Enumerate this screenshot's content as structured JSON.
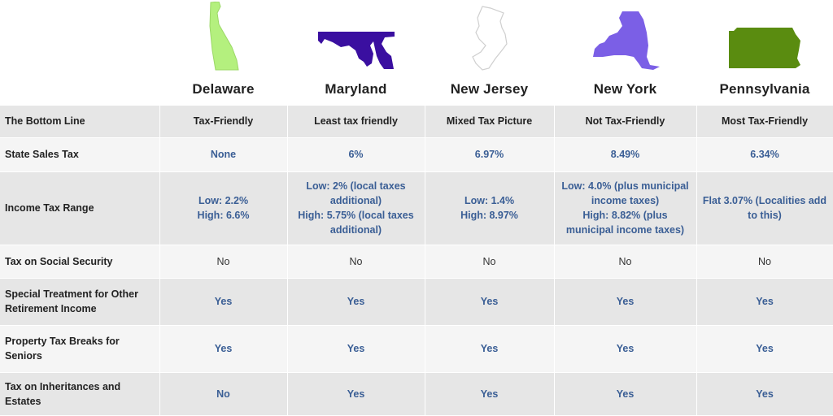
{
  "states": [
    {
      "name": "Delaware",
      "icon": "delaware-map-icon",
      "color": "#b4f07e"
    },
    {
      "name": "Maryland",
      "icon": "maryland-map-icon",
      "color": "#3a0fa0"
    },
    {
      "name": "New Jersey",
      "icon": "new-jersey-map-icon",
      "color": "#ffffff"
    },
    {
      "name": "New York",
      "icon": "new-york-map-icon",
      "color": "#7b5fe6"
    },
    {
      "name": "Pennsylvania",
      "icon": "pennsylvania-map-icon",
      "color": "#5a8c10"
    }
  ],
  "rows": [
    {
      "label": "The Bottom Line",
      "values": [
        "Tax-Friendly",
        "Least tax friendly",
        "Mixed Tax Picture",
        "Not Tax-Friendly",
        "Most Tax-Friendly"
      ]
    },
    {
      "label": "State Sales Tax",
      "values": [
        "None",
        "6%",
        "6.97%",
        "8.49%",
        "6.34%"
      ]
    },
    {
      "label": "Income Tax Range",
      "values": [
        [
          "Low: 2.2%",
          "High: 6.6%"
        ],
        [
          "Low: 2% (local taxes additional)",
          "High: 5.75% (local taxes additional)"
        ],
        [
          "Low: 1.4%",
          "High: 8.97%"
        ],
        [
          "Low: 4.0% (plus municipal income taxes)",
          "High: 8.82% (plus municipal income taxes)"
        ],
        [
          "Flat 3.07% (Localities add to this)"
        ]
      ]
    },
    {
      "label": "Tax on Social Security",
      "values": [
        "No",
        "No",
        "No",
        "No",
        "No"
      ]
    },
    {
      "label": "Special Treatment for Other Retirement Income",
      "values": [
        "Yes",
        "Yes",
        "Yes",
        "Yes",
        "Yes"
      ]
    },
    {
      "label": "Property Tax Breaks for Seniors",
      "values": [
        "Yes",
        "Yes",
        "Yes",
        "Yes",
        "Yes"
      ]
    },
    {
      "label": "Tax on Inheritances and Estates",
      "values": [
        "No",
        "Yes",
        "Yes",
        "Yes",
        "Yes"
      ]
    }
  ],
  "colors": {
    "value_text": "#3a5e95",
    "row_shade": "#e6e6e6",
    "row_light": "#f5f5f5"
  }
}
